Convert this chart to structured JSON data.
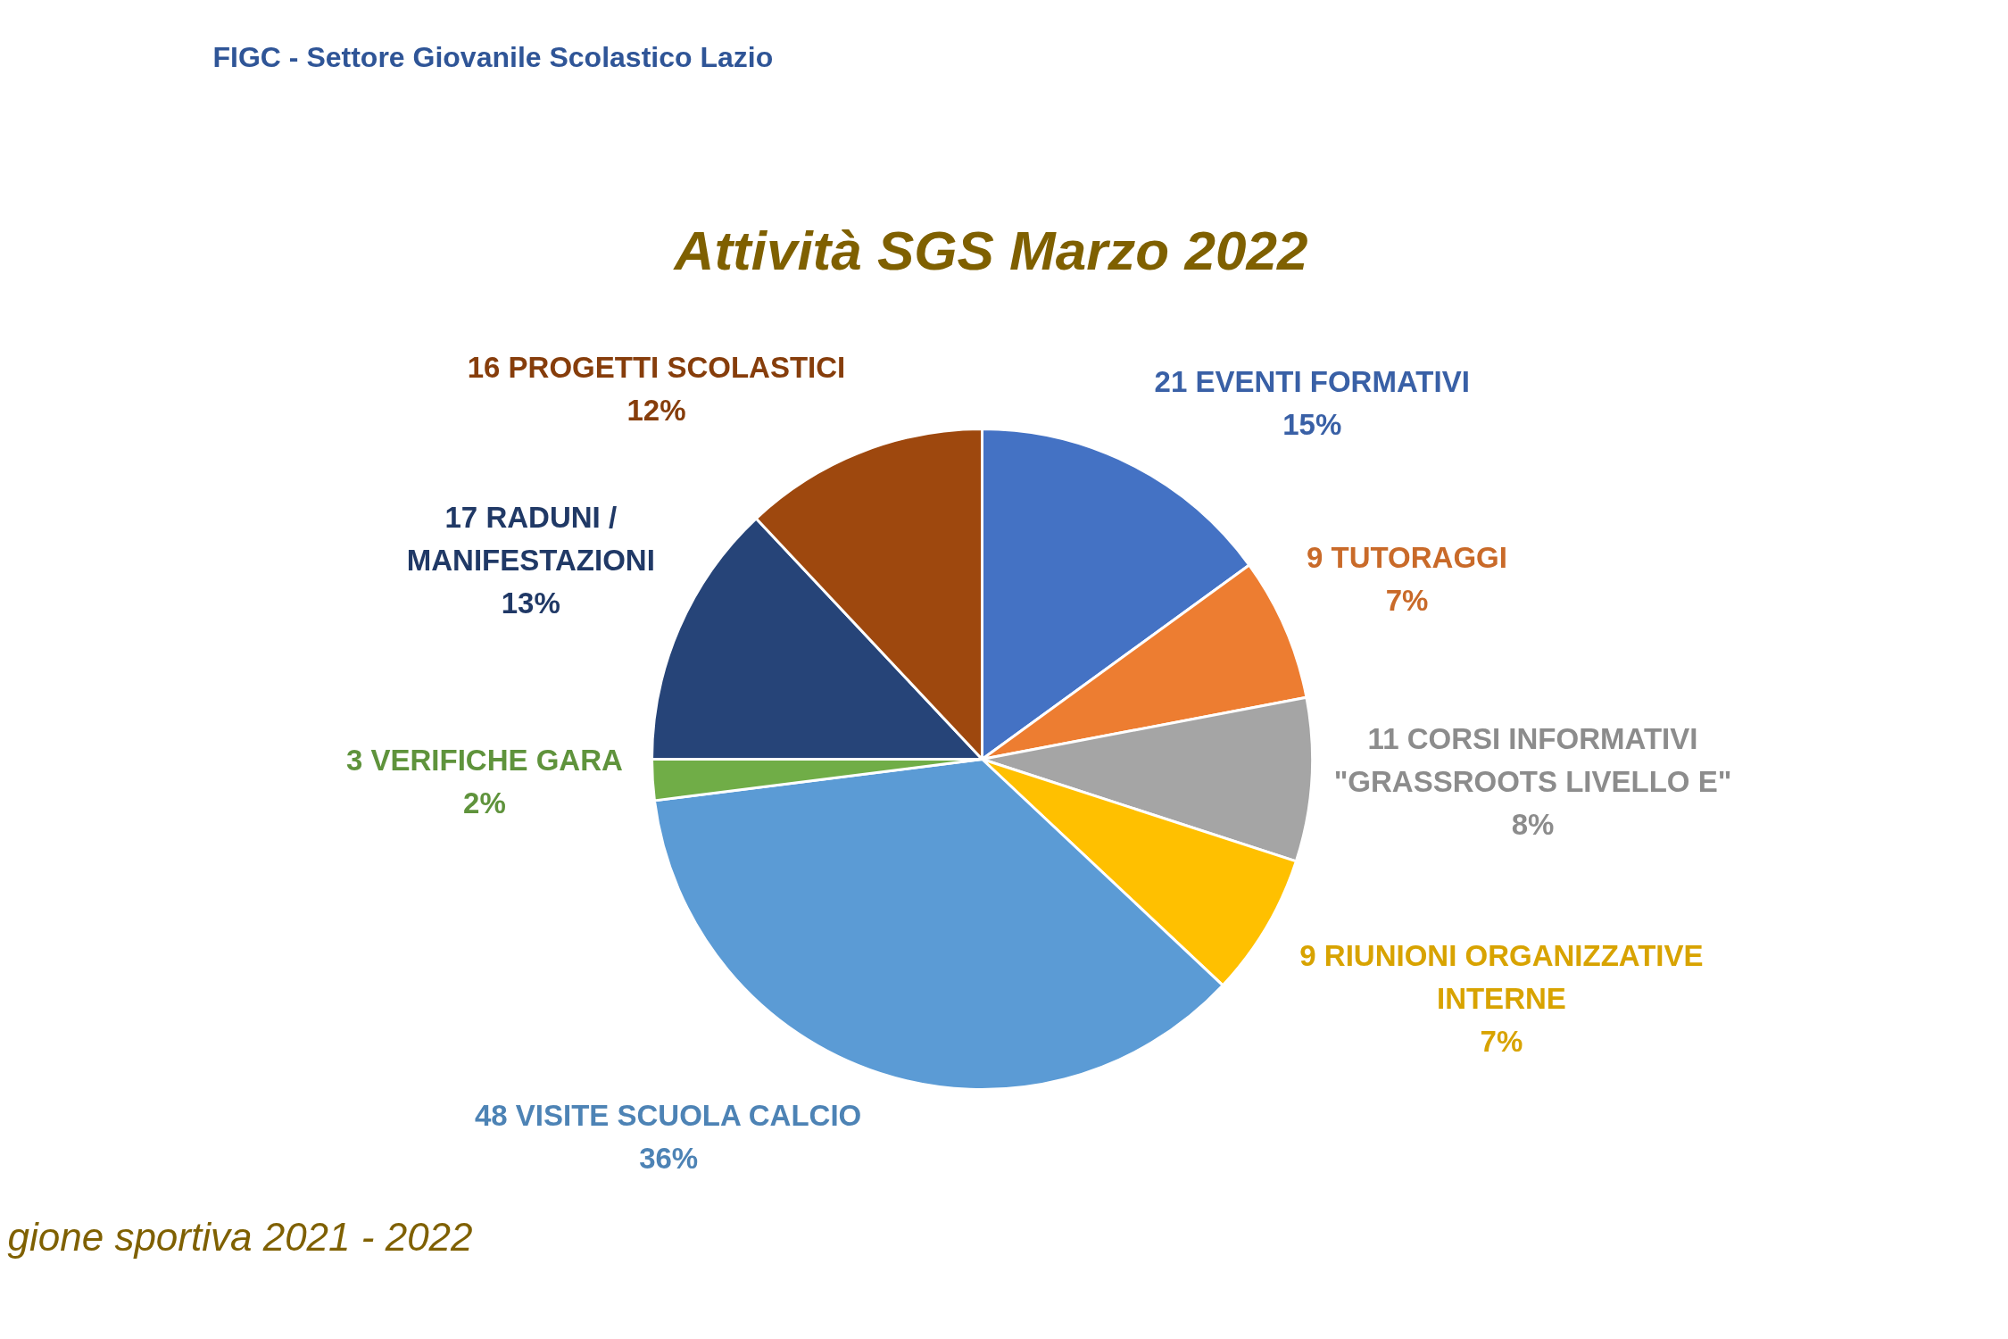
{
  "chart_data": {
    "type": "pie",
    "title": "Attività SGS Marzo 2022",
    "categories": [
      "21 EVENTI FORMATIVI",
      "9 TUTORAGGI",
      "11 CORSI INFORMATIVI \"GRASSROOTS LIVELLO E\"",
      "9 RIUNIONI ORGANIZZATIVE INTERNE",
      "48 VISITE SCUOLA CALCIO",
      "3 VERIFICHE GARA",
      "17 RADUNI / MANIFESTAZIONI",
      "16 PROGETTI SCOLASTICI"
    ],
    "values": [
      15,
      7,
      8,
      7,
      36,
      2,
      13,
      12
    ],
    "value_labels": [
      "15%",
      "7%",
      "8%",
      "7%",
      "36%",
      "2%",
      "13%",
      "12%"
    ],
    "colors": [
      "#4472c4",
      "#ed7d31",
      "#a5a5a5",
      "#ffc000",
      "#5b9bd5",
      "#70ad47",
      "#264478",
      "#9e480e"
    ],
    "annotations": [
      "FIGC - Settore Giovanile Scolastico Lazio",
      "gione sportiva 2021 - 2022"
    ]
  }
}
